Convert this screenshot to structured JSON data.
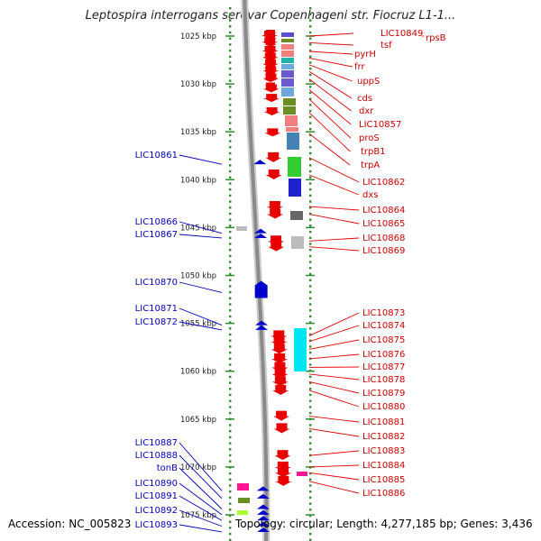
{
  "title": "Leptospira interrogans serovar Copenhageni str. Fiocruz L1-1...",
  "footer": {
    "accession": "Accession: NC_005823",
    "topology": "Topology: circular; Length: 4,277,185 bp; Genes: 3,436"
  },
  "scale": {
    "unit": "kbp",
    "ticks": [
      {
        "pos": 1025,
        "label": "1025 kbp"
      },
      {
        "pos": 1030,
        "label": "1030 kbp"
      },
      {
        "pos": 1035,
        "label": "1035 kbp"
      },
      {
        "pos": 1040,
        "label": "1040 kbp"
      },
      {
        "pos": 1045,
        "label": "1045 kbp"
      },
      {
        "pos": 1050,
        "label": "1050 kbp"
      },
      {
        "pos": 1055,
        "label": "1055 kbp"
      },
      {
        "pos": 1060,
        "label": "1060 kbp"
      },
      {
        "pos": 1065,
        "label": "1065 kbp"
      },
      {
        "pos": 1070,
        "label": "1070 kbp"
      },
      {
        "pos": 1075,
        "label": "1075 kbp"
      }
    ]
  },
  "colors": {
    "forward": "#e80000",
    "reverse": "#0000cc",
    "label_forward": "#cc0000",
    "label_reverse": "#0000bb",
    "scale_dots": "#2e8b2e"
  },
  "forward_genes": [
    {
      "label": "LIC10849",
      "pos": 1025.0
    },
    {
      "label": "tsf",
      "pos": 1025.7
    },
    {
      "label": "pyrH",
      "pos": 1026.6
    },
    {
      "label": "frr",
      "pos": 1027.3
    },
    {
      "label": "uppS",
      "pos": 1028.0
    },
    {
      "label": "cds",
      "pos": 1028.7
    },
    {
      "label": "dxr",
      "pos": 1029.5
    },
    {
      "label": "LIC10857",
      "pos": 1030.6
    },
    {
      "label": "proS",
      "pos": 1031.6
    },
    {
      "label": "trpB1",
      "pos": 1033.0
    },
    {
      "label": "trpA",
      "pos": 1035.2
    },
    {
      "label": "LIC10862",
      "pos": 1037.7
    },
    {
      "label": "dxs",
      "pos": 1039.5
    },
    {
      "label": "LIC10864",
      "pos": 1042.8
    },
    {
      "label": "LIC10865",
      "pos": 1043.6
    },
    {
      "label": "LIC10868",
      "pos": 1046.4
    },
    {
      "label": "LIC10869",
      "pos": 1047.0
    },
    {
      "label": "LIC10873",
      "pos": 1056.3
    },
    {
      "label": "LIC10874",
      "pos": 1056.9
    },
    {
      "label": "LIC10875",
      "pos": 1057.7
    },
    {
      "label": "LIC10876",
      "pos": 1058.7
    },
    {
      "label": "LIC10877",
      "pos": 1059.6
    },
    {
      "label": "LIC10878",
      "pos": 1060.3
    },
    {
      "label": "LIC10879",
      "pos": 1061.1
    },
    {
      "label": "LIC10880",
      "pos": 1062.0
    },
    {
      "label": "LIC10881",
      "pos": 1064.7
    },
    {
      "label": "LIC10882",
      "pos": 1066.0
    },
    {
      "label": "LIC10883",
      "pos": 1068.8
    },
    {
      "label": "LIC10884",
      "pos": 1070.0
    },
    {
      "label": "LIC10885",
      "pos": 1070.6
    },
    {
      "label": "LIC10886",
      "pos": 1071.5
    }
  ],
  "extra_labels": [
    {
      "label": "rpsB",
      "pos": 1025.0
    }
  ],
  "reverse_genes": [
    {
      "label": "LIC10861",
      "pos": 1038.2
    },
    {
      "label": "LIC10866",
      "pos": 1045.4
    },
    {
      "label": "LIC10867",
      "pos": 1045.9
    },
    {
      "label": "LIC10870",
      "pos": 1051.6
    },
    {
      "label": "LIC10871",
      "pos": 1055.0
    },
    {
      "label": "LIC10872",
      "pos": 1055.5
    },
    {
      "label": "LIC10887",
      "pos": 1072.3
    },
    {
      "label": "LIC10888",
      "pos": 1073.1
    },
    {
      "label": "tonB",
      "pos": 1074.2
    },
    {
      "label": "LIC10890",
      "pos": 1074.8
    },
    {
      "label": "LIC10891",
      "pos": 1075.4
    },
    {
      "label": "LIC10892",
      "pos": 1076.0
    },
    {
      "label": "LIC10893",
      "pos": 1076.6
    }
  ]
}
